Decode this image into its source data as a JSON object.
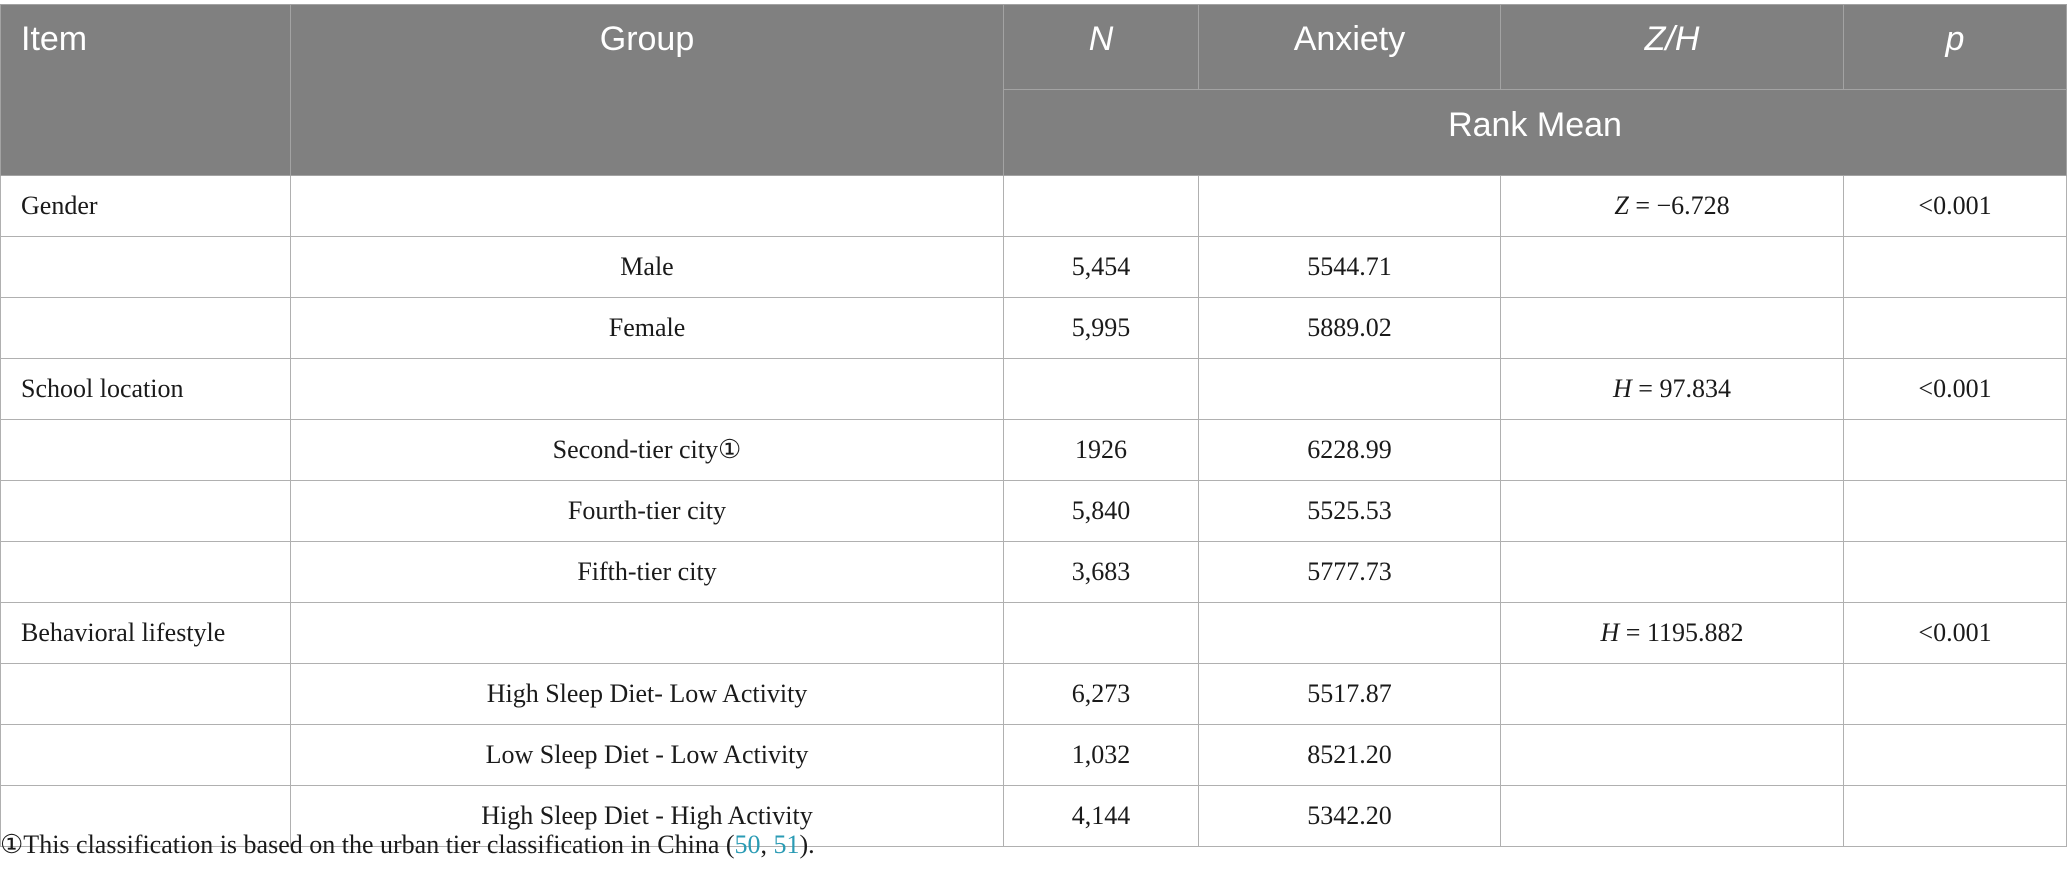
{
  "table": {
    "headers": {
      "item": "Item",
      "group": "Group",
      "n": "N",
      "anxiety": "Anxiety",
      "zh": "Z/H",
      "p": "p",
      "rank_mean": "Rank Mean"
    },
    "rows": [
      {
        "item": "Gender",
        "group": "",
        "n": "",
        "anxiety": "",
        "stat_label": "Z",
        "stat_value": " = −6.728",
        "p": "<0.001"
      },
      {
        "item": "",
        "group": "Male",
        "n": "5,454",
        "anxiety": "5544.71",
        "stat_label": "",
        "stat_value": "",
        "p": ""
      },
      {
        "item": "",
        "group": "Female",
        "n": "5,995",
        "anxiety": "5889.02",
        "stat_label": "",
        "stat_value": "",
        "p": ""
      },
      {
        "item": "School location",
        "group": "",
        "n": "",
        "anxiety": "",
        "stat_label": "H",
        "stat_value": " = 97.834",
        "p": "<0.001"
      },
      {
        "item": "",
        "group": "Second-tier city①",
        "n": "1926",
        "anxiety": "6228.99",
        "stat_label": "",
        "stat_value": "",
        "p": ""
      },
      {
        "item": "",
        "group": "Fourth-tier city",
        "n": "5,840",
        "anxiety": "5525.53",
        "stat_label": "",
        "stat_value": "",
        "p": ""
      },
      {
        "item": "",
        "group": "Fifth-tier city",
        "n": "3,683",
        "anxiety": "5777.73",
        "stat_label": "",
        "stat_value": "",
        "p": ""
      },
      {
        "item": "Behavioral lifestyle",
        "group": "",
        "n": "",
        "anxiety": "",
        "stat_label": "H",
        "stat_value": " = 1195.882",
        "p": "<0.001"
      },
      {
        "item": "",
        "group": "High Sleep Diet- Low Activity",
        "n": "6,273",
        "anxiety": "5517.87",
        "stat_label": "",
        "stat_value": "",
        "p": ""
      },
      {
        "item": "",
        "group": "Low Sleep Diet - Low Activity",
        "n": "1,032",
        "anxiety": "8521.20",
        "stat_label": "",
        "stat_value": "",
        "p": ""
      },
      {
        "item": "",
        "group": "High Sleep Diet - High Activity",
        "n": "4,144",
        "anxiety": "5342.20",
        "stat_label": "",
        "stat_value": "",
        "p": ""
      }
    ]
  },
  "footnote": {
    "text": "①This classification is based on the urban tier classification in China (",
    "ref1": "50",
    "sep": ", ",
    "ref2": "51",
    "end": ")."
  },
  "colors": {
    "header_bg": "#808080",
    "header_text": "#ffffff",
    "ref_link": "#2a9bb4"
  }
}
